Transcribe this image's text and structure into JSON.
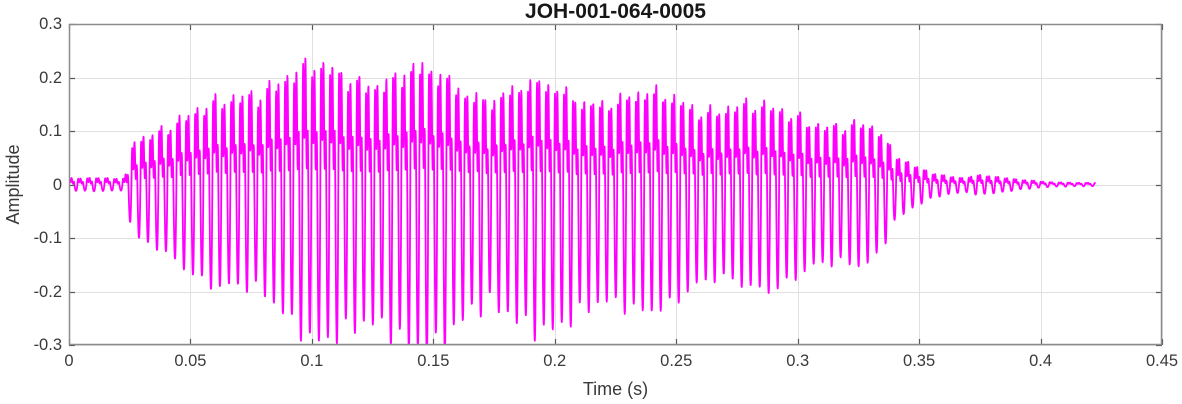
{
  "chart_data": {
    "type": "line",
    "subtype": "audio-waveform",
    "title": "JOH-001-064-0005",
    "xlabel": "Time (s)",
    "ylabel": "Amplitude",
    "xlim": [
      0,
      0.45
    ],
    "ylim": [
      -0.3,
      0.3
    ],
    "xticks": [
      0,
      0.05,
      0.1,
      0.15,
      0.2,
      0.25,
      0.3,
      0.35,
      0.4,
      0.45
    ],
    "xtick_labels": [
      "0",
      "0.05",
      "0.1",
      "0.15",
      "0.2",
      "0.25",
      "0.3",
      "0.35",
      "0.4",
      "0.45"
    ],
    "yticks": [
      -0.3,
      -0.2,
      -0.1,
      0,
      0.1,
      0.2,
      0.3
    ],
    "ytick_labels": [
      "-0.3",
      "-0.2",
      "-0.1",
      "0",
      "0.1",
      "0.2",
      "0.3"
    ],
    "grid": true,
    "legend": null,
    "colors": {
      "line": "#FF00FF",
      "grid": "#e0e0e0",
      "axis_box": "#8c8c8c",
      "tick_mark": "#595959",
      "tick_text": "#3a3a3a",
      "title_text": "#171717",
      "background": "#ffffff"
    },
    "signal": {
      "start_s": 0,
      "end_s": 0.4224,
      "fundamental_hz": 270,
      "harmonic_amps": [
        1.0,
        0.5,
        0.33,
        0.2
      ],
      "harmonic_phases": [
        0,
        1.2,
        2.4,
        0.8
      ],
      "am_wobble": [
        {
          "amp": 0.1,
          "hz": 21.3,
          "phase": 0.7
        },
        {
          "amp": 0.07,
          "hz": 8.1,
          "phase": 2.1
        },
        {
          "amp": 0.05,
          "hz": 137.0,
          "phase": 0.3
        },
        {
          "amp": 0.04,
          "hz": 83.0,
          "phase": 1.7
        }
      ],
      "envelope": {
        "t": [
          0.0,
          0.023,
          0.0265,
          0.035,
          0.05,
          0.06,
          0.07,
          0.08,
          0.1,
          0.12,
          0.135,
          0.14,
          0.155,
          0.17,
          0.185,
          0.2,
          0.21,
          0.225,
          0.24,
          0.26,
          0.273,
          0.29,
          0.31,
          0.325,
          0.333,
          0.34,
          0.35,
          0.36,
          0.368,
          0.376,
          0.385,
          0.395,
          0.405,
          0.412,
          0.4224
        ],
        "upper": [
          0.01,
          0.012,
          0.095,
          0.11,
          0.13,
          0.155,
          0.185,
          0.195,
          0.197,
          0.196,
          0.2,
          0.207,
          0.198,
          0.192,
          0.19,
          0.175,
          0.165,
          0.158,
          0.15,
          0.145,
          0.158,
          0.14,
          0.132,
          0.115,
          0.095,
          0.05,
          0.03,
          0.017,
          0.012,
          0.016,
          0.011,
          0.008,
          0.005,
          0.004,
          0.003
        ],
        "lower": [
          -0.01,
          -0.012,
          -0.115,
          -0.13,
          -0.16,
          -0.19,
          -0.21,
          -0.225,
          -0.25,
          -0.265,
          -0.278,
          -0.282,
          -0.285,
          -0.27,
          -0.262,
          -0.255,
          -0.25,
          -0.22,
          -0.2,
          -0.195,
          -0.19,
          -0.19,
          -0.175,
          -0.15,
          -0.12,
          -0.06,
          -0.035,
          -0.02,
          -0.014,
          -0.017,
          -0.012,
          -0.008,
          -0.005,
          -0.004,
          -0.003
        ]
      }
    }
  }
}
